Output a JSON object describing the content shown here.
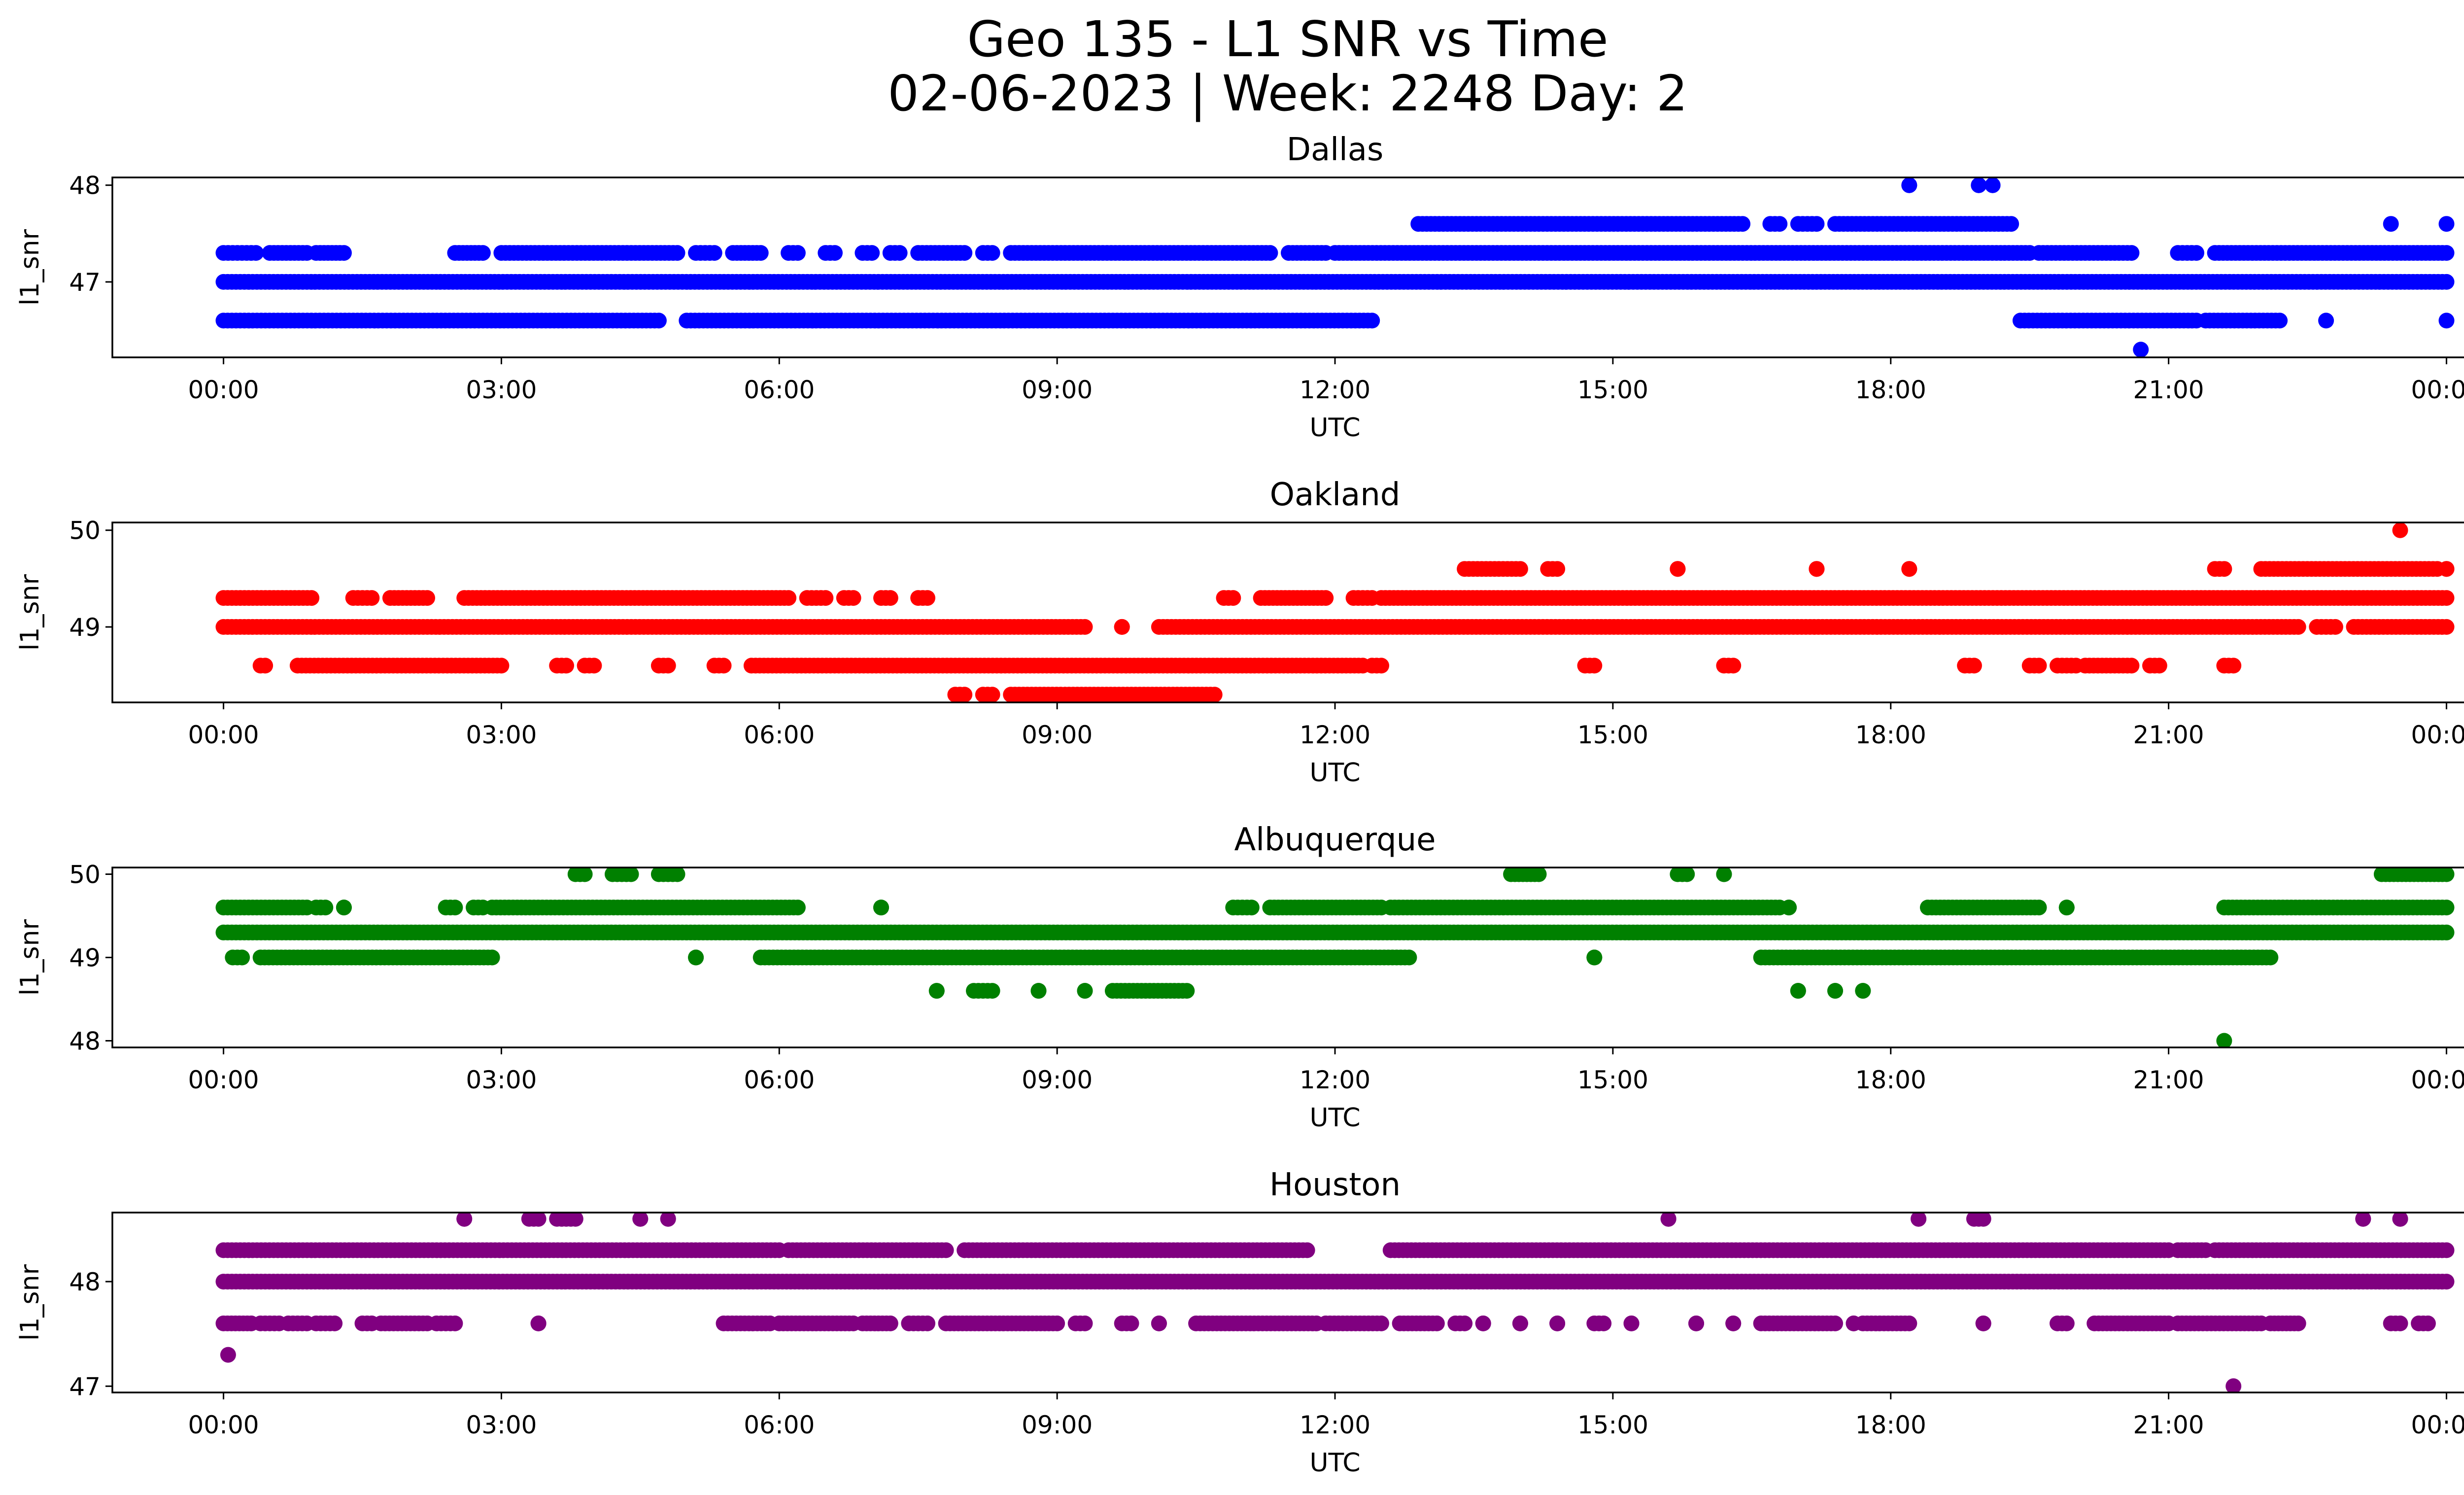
{
  "figure": {
    "title_line1": "Geo 135 - L1 SNR vs Time",
    "title_line2": "02-06-2023 | Week: 2248 Day: 2"
  },
  "chart_data": [
    {
      "type": "scatter",
      "title": "Dallas",
      "xlabel": "UTC",
      "ylabel": "l1_snr",
      "color": "#0000ff",
      "x_ticks": [
        "00:00",
        "03:00",
        "06:00",
        "09:00",
        "12:00",
        "15:00",
        "18:00",
        "21:00",
        "00:00"
      ],
      "x_tick_hours": [
        0,
        3,
        6,
        9,
        12,
        15,
        18,
        21,
        24
      ],
      "y_ticks": [
        47,
        48
      ],
      "ylim": [
        46.22,
        48.08
      ],
      "xlim_hours": [
        -1.2,
        25.2
      ],
      "series": [
        {
          "y": 47.0,
          "segments": [
            [
              0,
              24
            ]
          ]
        },
        {
          "y": 47.3,
          "segments": [
            [
              0,
              0.15
            ],
            [
              0.2,
              0.35
            ],
            [
              0.5,
              0.9
            ],
            [
              1.0,
              1.3
            ],
            [
              2.5,
              2.8
            ],
            [
              3.0,
              4.9
            ],
            [
              5.1,
              5.3
            ],
            [
              5.5,
              5.8
            ],
            [
              6.1,
              6.2
            ],
            [
              6.5,
              6.6
            ],
            [
              6.9,
              7.0
            ],
            [
              7.2,
              7.3
            ],
            [
              7.5,
              8.0
            ],
            [
              8.2,
              8.3
            ],
            [
              8.5,
              11.3
            ],
            [
              11.5,
              11.9
            ],
            [
              12.0,
              19.5
            ],
            [
              19.6,
              20.6
            ],
            [
              21.1,
              21.3
            ],
            [
              21.5,
              24
            ]
          ]
        },
        {
          "y": 46.6,
          "segments": [
            [
              0,
              4.7
            ],
            [
              5.0,
              12.4
            ],
            [
              19.4,
              21.3
            ],
            [
              21.4,
              22.2
            ]
          ]
        },
        {
          "y": 47.6,
          "segments": [
            [
              12.9,
              16.4
            ],
            [
              16.7,
              16.8
            ],
            [
              17.0,
              17.2
            ],
            [
              17.4,
              19.3
            ]
          ]
        },
        {
          "y": 48.0,
          "segments": [
            [
              18.2,
              18.2
            ],
            [
              18.95,
              18.95
            ],
            [
              19.1,
              19.1
            ]
          ]
        }
      ],
      "points": [
        {
          "x": 20.7,
          "y": 46.3
        },
        {
          "x": 22.7,
          "y": 46.6
        },
        {
          "x": 23.4,
          "y": 47.6
        },
        {
          "x": 24.0,
          "y": 47.6
        },
        {
          "x": 24.0,
          "y": 46.6
        }
      ]
    },
    {
      "type": "scatter",
      "title": "Oakland",
      "xlabel": "UTC",
      "ylabel": "l1_snr",
      "color": "#ff0000",
      "x_ticks": [
        "00:00",
        "03:00",
        "06:00",
        "09:00",
        "12:00",
        "15:00",
        "18:00",
        "21:00",
        "00:00"
      ],
      "x_tick_hours": [
        0,
        3,
        6,
        9,
        12,
        15,
        18,
        21,
        24
      ],
      "y_ticks": [
        49,
        50
      ],
      "ylim": [
        48.22,
        50.08
      ],
      "xlim_hours": [
        -1.2,
        25.2
      ],
      "series": [
        {
          "y": 49.0,
          "segments": [
            [
              0,
              9.3
            ],
            [
              9.7,
              9.7
            ],
            [
              10.1,
              22.4
            ],
            [
              22.6,
              22.8
            ],
            [
              23.0,
              24
            ]
          ]
        },
        {
          "y": 49.3,
          "segments": [
            [
              0,
              0.95
            ],
            [
              1.4,
              1.6
            ],
            [
              1.8,
              2.2
            ],
            [
              2.6,
              6.1
            ],
            [
              6.3,
              6.5
            ],
            [
              6.7,
              6.8
            ],
            [
              7.1,
              7.2
            ],
            [
              7.5,
              7.6
            ],
            [
              10.8,
              10.9
            ],
            [
              11.2,
              11.9
            ],
            [
              12.2,
              12.4
            ],
            [
              12.5,
              24
            ]
          ]
        },
        {
          "y": 48.6,
          "segments": [
            [
              0.4,
              0.45
            ],
            [
              0.8,
              3.0
            ],
            [
              3.6,
              3.7
            ],
            [
              3.9,
              4.0
            ],
            [
              4.7,
              4.8
            ],
            [
              5.3,
              5.4
            ],
            [
              5.7,
              12.3
            ],
            [
              12.4,
              12.5
            ],
            [
              14.7,
              14.8
            ],
            [
              16.2,
              16.3
            ],
            [
              18.8,
              18.9
            ],
            [
              19.5,
              19.6
            ],
            [
              19.8,
              20.0
            ],
            [
              20.1,
              20.6
            ],
            [
              20.8,
              20.9
            ],
            [
              21.6,
              21.7
            ]
          ]
        },
        {
          "y": 48.3,
          "segments": [
            [
              7.9,
              8.0
            ],
            [
              8.2,
              8.3
            ],
            [
              8.5,
              10.7
            ]
          ]
        },
        {
          "y": 49.6,
          "segments": [
            [
              13.4,
              14.0
            ],
            [
              14.3,
              14.4
            ],
            [
              15.7,
              15.7
            ],
            [
              17.2,
              17.2
            ],
            [
              18.2,
              18.2
            ],
            [
              21.5,
              21.6
            ],
            [
              22.0,
              23.9
            ],
            [
              24.0,
              24.0
            ]
          ]
        }
      ],
      "points": [
        {
          "x": 23.5,
          "y": 50.0
        }
      ]
    },
    {
      "type": "scatter",
      "title": "Albuquerque",
      "xlabel": "UTC",
      "ylabel": "l1_snr",
      "color": "#008000",
      "x_ticks": [
        "00:00",
        "03:00",
        "06:00",
        "09:00",
        "12:00",
        "15:00",
        "18:00",
        "21:00",
        "00:00"
      ],
      "x_tick_hours": [
        0,
        3,
        6,
        9,
        12,
        15,
        18,
        21,
        24
      ],
      "y_ticks": [
        48,
        49,
        50
      ],
      "ylim": [
        47.92,
        50.08
      ],
      "xlim_hours": [
        -1.2,
        25.2
      ],
      "series": [
        {
          "y": 49.3,
          "segments": [
            [
              0,
              24
            ]
          ]
        },
        {
          "y": 49.6,
          "segments": [
            [
              0,
              0.9
            ],
            [
              1.0,
              1.1
            ],
            [
              1.3,
              1.3
            ],
            [
              2.4,
              2.5
            ],
            [
              2.7,
              2.8
            ],
            [
              2.9,
              6.2
            ],
            [
              7.1,
              7.1
            ],
            [
              10.9,
              11.1
            ],
            [
              11.3,
              12.5
            ],
            [
              12.6,
              16.8
            ],
            [
              16.9,
              16.9
            ],
            [
              18.4,
              19.6
            ],
            [
              19.9,
              19.9
            ],
            [
              21.6,
              24
            ]
          ]
        },
        {
          "y": 49.0,
          "segments": [
            [
              0.1,
              0.2
            ],
            [
              0.4,
              2.9
            ],
            [
              5.1,
              5.1
            ],
            [
              5.8,
              12.8
            ],
            [
              14.8,
              14.8
            ],
            [
              16.6,
              22.1
            ]
          ]
        },
        {
          "y": 50.0,
          "segments": [
            [
              3.8,
              3.9
            ],
            [
              4.2,
              4.4
            ],
            [
              4.7,
              4.9
            ],
            [
              13.9,
              14.2
            ],
            [
              15.7,
              15.8
            ],
            [
              16.2,
              16.2
            ],
            [
              23.3,
              24.0
            ]
          ]
        },
        {
          "y": 48.6,
          "segments": [
            [
              7.7,
              7.7
            ],
            [
              8.1,
              8.3
            ],
            [
              8.8,
              8.8
            ],
            [
              9.3,
              9.3
            ],
            [
              9.6,
              10.4
            ],
            [
              17.0,
              17.0
            ],
            [
              17.4,
              17.4
            ],
            [
              17.7,
              17.7
            ]
          ]
        }
      ],
      "points": [
        {
          "x": 21.6,
          "y": 48.0
        }
      ]
    },
    {
      "type": "scatter",
      "title": "Houston",
      "xlabel": "UTC",
      "ylabel": "l1_snr",
      "color": "#800080",
      "x_ticks": [
        "00:00",
        "03:00",
        "06:00",
        "09:00",
        "12:00",
        "15:00",
        "18:00",
        "21:00",
        "00:00"
      ],
      "x_tick_hours": [
        0,
        3,
        6,
        9,
        12,
        15,
        18,
        21,
        24
      ],
      "y_ticks": [
        47,
        48
      ],
      "ylim": [
        46.94,
        48.66
      ],
      "xlim_hours": [
        -1.2,
        25.2
      ],
      "series": [
        {
          "y": 48.0,
          "segments": [
            [
              0,
              24
            ]
          ]
        },
        {
          "y": 48.3,
          "segments": [
            [
              0,
              6.0
            ],
            [
              6.1,
              7.8
            ],
            [
              8.0,
              11.7
            ],
            [
              12.6,
              21.0
            ],
            [
              21.1,
              21.4
            ],
            [
              21.5,
              24
            ]
          ]
        },
        {
          "y": 47.6,
          "segments": [
            [
              0,
              0.3
            ],
            [
              0.4,
              0.6
            ],
            [
              0.7,
              0.9
            ],
            [
              1.0,
              1.2
            ],
            [
              1.5,
              1.6
            ],
            [
              1.7,
              2.2
            ],
            [
              2.3,
              2.5
            ],
            [
              3.4,
              3.4
            ],
            [
              5.4,
              5.9
            ],
            [
              6.0,
              6.8
            ],
            [
              6.9,
              7.2
            ],
            [
              7.4,
              7.6
            ],
            [
              7.8,
              9.0
            ],
            [
              9.2,
              9.3
            ],
            [
              9.7,
              9.8
            ],
            [
              10.1,
              10.1
            ],
            [
              10.5,
              11.8
            ],
            [
              11.9,
              12.5
            ],
            [
              12.7,
              13.1
            ],
            [
              13.3,
              13.4
            ],
            [
              13.6,
              13.6
            ],
            [
              14.0,
              14.0
            ],
            [
              14.4,
              14.4
            ],
            [
              14.8,
              14.9
            ],
            [
              15.2,
              15.2
            ],
            [
              15.9,
              15.9
            ],
            [
              16.3,
              16.3
            ],
            [
              16.6,
              17.4
            ],
            [
              17.6,
              17.6
            ],
            [
              17.7,
              18.2
            ],
            [
              19.0,
              19.0
            ],
            [
              19.8,
              19.9
            ],
            [
              20.2,
              21.0
            ],
            [
              21.1,
              22.0
            ],
            [
              22.1,
              22.4
            ],
            [
              23.4,
              23.5
            ],
            [
              23.7,
              23.8
            ]
          ]
        },
        {
          "y": 48.6,
          "segments": [
            [
              2.6,
              2.6
            ],
            [
              3.3,
              3.4
            ],
            [
              3.6,
              3.8
            ],
            [
              4.5,
              4.5
            ],
            [
              4.8,
              4.8
            ],
            [
              15.6,
              15.6
            ],
            [
              18.3,
              18.3
            ],
            [
              18.9,
              19.0
            ],
            [
              23.1,
              23.1
            ],
            [
              23.5,
              23.5
            ]
          ]
        }
      ],
      "points": [
        {
          "x": 0.05,
          "y": 47.3
        },
        {
          "x": 21.7,
          "y": 47.0
        }
      ]
    }
  ]
}
